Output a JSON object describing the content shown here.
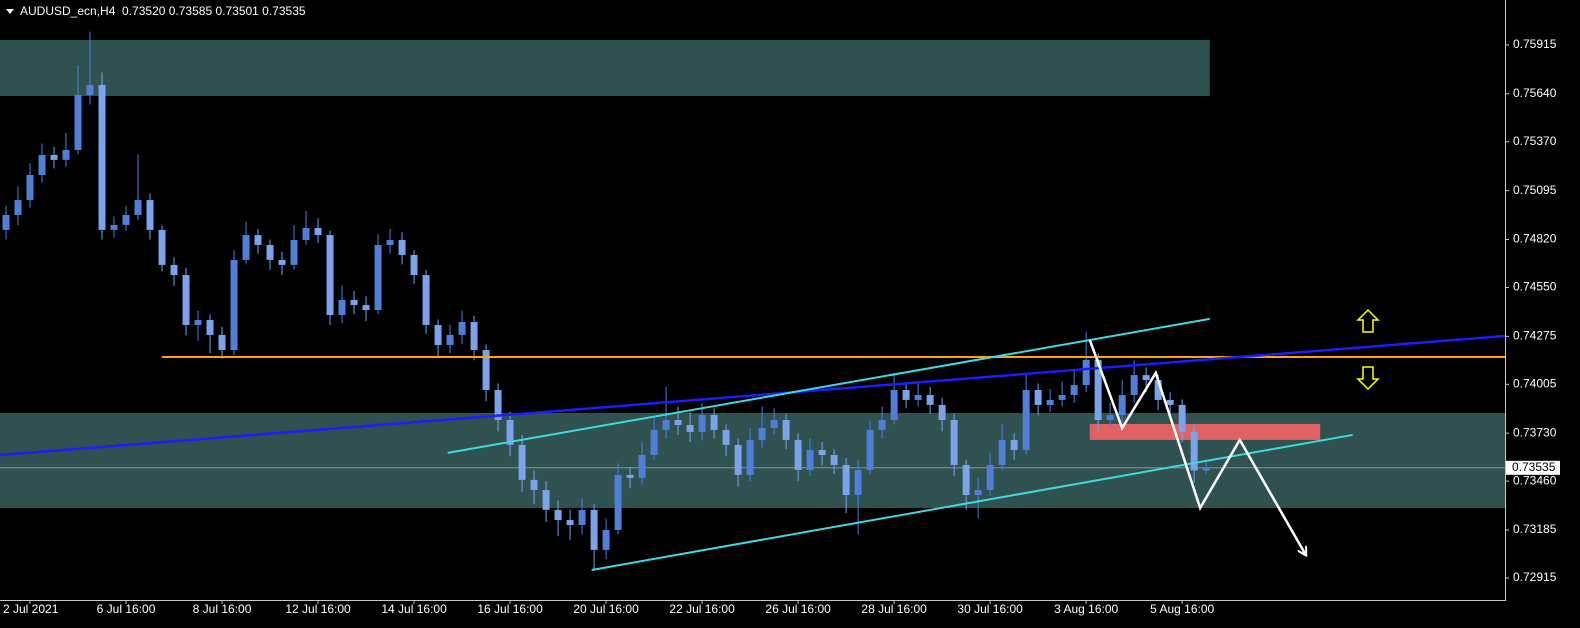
{
  "chart_data": {
    "type": "candlestick",
    "title": "AUDUSD_ecn,H4  0.73520 0.73585 0.73501 0.73535",
    "up_color": "#4f7fd8",
    "down_color": "#7aa3ea",
    "open": [
      0.74874,
      0.74958,
      0.75042,
      0.75183,
      0.75296,
      0.75268,
      0.75324,
      0.75633,
      0.7569,
      0.74874,
      0.74902,
      0.74958,
      0.75042,
      0.74874,
      0.74677,
      0.7462,
      0.74339,
      0.74367,
      0.74283,
      0.74198,
      0.74705,
      0.74845,
      0.74789,
      0.74705,
      0.74677,
      0.74817,
      0.74885,
      0.74845,
      0.74395,
      0.7448,
      0.74451,
      0.74423,
      0.74789,
      0.74817,
      0.74733,
      0.7462,
      0.74339,
      0.74226,
      0.74283,
      0.74356,
      0.74198,
      0.73973,
      0.73804,
      0.73664,
      0.73467,
      0.7341,
      0.73298,
      0.73241,
      0.73213,
      0.73298,
      0.73073,
      0.73185,
      0.73495,
      0.73478,
      0.73607,
      0.73748,
      0.73804,
      0.73776,
      0.73737,
      0.73832,
      0.73748,
      0.73664,
      0.73495,
      0.73692,
      0.73759,
      0.73804,
      0.73692,
      0.73523,
      0.73635,
      0.73607,
      0.73551,
      0.73382,
      0.73523,
      0.73748,
      0.73804,
      0.73973,
      0.73917,
      0.73945,
      0.73889,
      0.73804,
      0.73551,
      0.73382,
      0.7341,
      0.73551,
      0.73692,
      0.73635,
      0.73973,
      0.73889,
      0.73917,
      0.73945,
      0.74001,
      0.74142,
      0.73804,
      0.73832,
      0.73945,
      0.74057,
      0.74029,
      0.73917,
      0.73889,
      0.73737,
      0.7352
    ],
    "high": [
      0.7501,
      0.7512,
      0.7525,
      0.7536,
      0.7534,
      0.7542,
      0.758,
      0.7599,
      0.7576,
      0.7495,
      0.7501,
      0.753,
      0.7508,
      0.749,
      0.7472,
      0.7466,
      0.7442,
      0.744,
      0.7433,
      0.7476,
      0.7492,
      0.7488,
      0.7482,
      0.7475,
      0.749,
      0.7498,
      0.7494,
      0.7487,
      0.7456,
      0.7453,
      0.745,
      0.7485,
      0.7488,
      0.7486,
      0.7476,
      0.7465,
      0.7437,
      0.7434,
      0.7442,
      0.7439,
      0.7423,
      0.7401,
      0.7385,
      0.7372,
      0.7352,
      0.7346,
      0.7335,
      0.733,
      0.7336,
      0.7333,
      0.7325,
      0.7356,
      0.7354,
      0.7368,
      0.7382,
      0.7399,
      0.7388,
      0.7385,
      0.739,
      0.7387,
      0.7378,
      0.737,
      0.7376,
      0.7388,
      0.7387,
      0.7384,
      0.7373,
      0.737,
      0.7368,
      0.7364,
      0.7359,
      0.7358,
      0.738,
      0.7388,
      0.7407,
      0.7401,
      0.7402,
      0.7399,
      0.7393,
      0.7384,
      0.7358,
      0.7348,
      0.7362,
      0.7378,
      0.7373,
      0.7406,
      0.7401,
      0.7398,
      0.7402,
      0.7408,
      0.743,
      0.7418,
      0.739,
      0.7403,
      0.7414,
      0.741,
      0.7406,
      0.7396,
      0.7392,
      0.7377,
      0.73585
    ],
    "low": [
      0.7482,
      0.749,
      0.75,
      0.7514,
      0.7522,
      0.7523,
      0.753,
      0.7558,
      0.7482,
      0.7483,
      0.7487,
      0.7493,
      0.7482,
      0.7464,
      0.7456,
      0.7428,
      0.7425,
      0.7418,
      0.7415,
      0.7417,
      0.7468,
      0.7474,
      0.7465,
      0.7462,
      0.7465,
      0.7479,
      0.748,
      0.7434,
      0.7435,
      0.744,
      0.7436,
      0.744,
      0.7474,
      0.7468,
      0.7457,
      0.7429,
      0.7416,
      0.7418,
      0.7423,
      0.7414,
      0.7391,
      0.7374,
      0.736,
      0.734,
      0.7333,
      0.7323,
      0.7315,
      0.7313,
      0.7316,
      0.7296,
      0.7302,
      0.7316,
      0.7342,
      0.7344,
      0.7358,
      0.737,
      0.7372,
      0.7368,
      0.7369,
      0.737,
      0.736,
      0.7343,
      0.7346,
      0.7365,
      0.7372,
      0.7364,
      0.7346,
      0.7349,
      0.7355,
      0.735,
      0.7328,
      0.7316,
      0.735,
      0.737,
      0.7378,
      0.7387,
      0.7388,
      0.7384,
      0.7374,
      0.7349,
      0.733,
      0.7325,
      0.7338,
      0.7352,
      0.7358,
      0.7361,
      0.7383,
      0.7385,
      0.7388,
      0.739,
      0.7396,
      0.7374,
      0.7376,
      0.7379,
      0.739,
      0.7396,
      0.7386,
      0.7382,
      0.7368,
      0.7345,
      0.73501
    ],
    "close": [
      0.74958,
      0.75042,
      0.75183,
      0.75296,
      0.75268,
      0.75324,
      0.75633,
      0.7569,
      0.74874,
      0.74902,
      0.74958,
      0.75042,
      0.74874,
      0.74677,
      0.7462,
      0.74339,
      0.74367,
      0.74283,
      0.74198,
      0.74705,
      0.74845,
      0.74789,
      0.74705,
      0.74677,
      0.74817,
      0.74885,
      0.74845,
      0.74395,
      0.7448,
      0.74451,
      0.74423,
      0.74789,
      0.74817,
      0.74733,
      0.7462,
      0.74339,
      0.74226,
      0.74283,
      0.74356,
      0.74198,
      0.73973,
      0.73804,
      0.73664,
      0.73467,
      0.7341,
      0.73298,
      0.73241,
      0.73213,
      0.73298,
      0.73073,
      0.73185,
      0.73495,
      0.73478,
      0.73607,
      0.73748,
      0.73804,
      0.73776,
      0.73737,
      0.73832,
      0.73748,
      0.73664,
      0.73495,
      0.73692,
      0.73759,
      0.73804,
      0.73692,
      0.73523,
      0.73635,
      0.73607,
      0.73551,
      0.73382,
      0.73523,
      0.73748,
      0.73804,
      0.73973,
      0.73917,
      0.73945,
      0.73889,
      0.73804,
      0.73551,
      0.73382,
      0.7341,
      0.73551,
      0.73692,
      0.73635,
      0.73973,
      0.73889,
      0.73917,
      0.73945,
      0.74001,
      0.74142,
      0.73804,
      0.73832,
      0.73945,
      0.74057,
      0.74029,
      0.73917,
      0.73889,
      0.73737,
      0.7352,
      0.73535
    ],
    "xlim": [
      -0.5,
      124.9
    ],
    "xticks": [
      {
        "value": 2,
        "label": "2 Jul 2021"
      },
      {
        "value": 10,
        "label": "6 Jul 16:00"
      },
      {
        "value": 18,
        "label": "8 Jul 16:00"
      },
      {
        "value": 26,
        "label": "12 Jul 16:00"
      },
      {
        "value": 34,
        "label": "14 Jul 16:00"
      },
      {
        "value": 42,
        "label": "16 Jul 16:00"
      },
      {
        "value": 50,
        "label": "20 Jul 16:00"
      },
      {
        "value": 58,
        "label": "22 Jul 16:00"
      },
      {
        "value": 66,
        "label": "26 Jul 16:00"
      },
      {
        "value": 74,
        "label": "28 Jul 16:00"
      },
      {
        "value": 82,
        "label": "30 Jul 16:00"
      },
      {
        "value": 90,
        "label": "3 Aug 16:00"
      },
      {
        "value": 98,
        "label": "5 Aug 16:00"
      }
    ],
    "ylim": [
      0.72791,
      0.76168
    ],
    "yticks": [
      0.75915,
      {
        "value": 0.7564,
        "label": "0.75640"
      },
      {
        "value": 0.7537,
        "label": "0.75370"
      },
      0.75095,
      {
        "value": 0.7482,
        "label": "0.74820"
      },
      {
        "value": 0.7455,
        "label": "0.74550"
      },
      0.74275,
      0.74005,
      {
        "value": 0.7373,
        "label": "0.73730"
      },
      {
        "value": 0.7346,
        "label": "0.73460"
      },
      0.73185,
      0.72915
    ],
    "current_price": {
      "value": 0.73535,
      "label": "0.73535"
    },
    "zones": [
      {
        "x": [
          -0.5,
          100.3
        ],
        "y": [
          0.75943,
          0.75628
        ],
        "color": "#2f5250"
      },
      {
        "x": [
          -0.5,
          124.9
        ],
        "y": [
          0.73844,
          0.73309
        ],
        "color": "#2f5250"
      },
      {
        "x": [
          90.3,
          109.5
        ],
        "y": [
          0.73782,
          0.73692
        ],
        "color": "#e06262"
      }
    ],
    "lines": [
      {
        "x": [
          13,
          124.9
        ],
        "y": [
          0.74159,
          0.74159
        ],
        "color": "#ffa500"
      },
      {
        "x": [
          -0.5,
          124.9
        ],
        "y": [
          0.73607,
          0.74277
        ],
        "color": "#1c1cff"
      },
      {
        "x": [
          36.8,
          100.3
        ],
        "y": [
          0.73619,
          0.74373
        ],
        "color": "#40d8e0"
      },
      {
        "x": [
          48.8,
          112.2
        ],
        "y": [
          0.7296,
          0.7372
        ],
        "color": "#40d8e0"
      }
    ],
    "path": {
      "x": [
        90.3,
        93,
        95.8,
        99.5,
        102.8,
        108.3
      ],
      "y": [
        0.74255,
        0.73759,
        0.74069,
        0.73309,
        0.73692,
        0.73045
      ],
      "color": "#ffffff"
    }
  }
}
